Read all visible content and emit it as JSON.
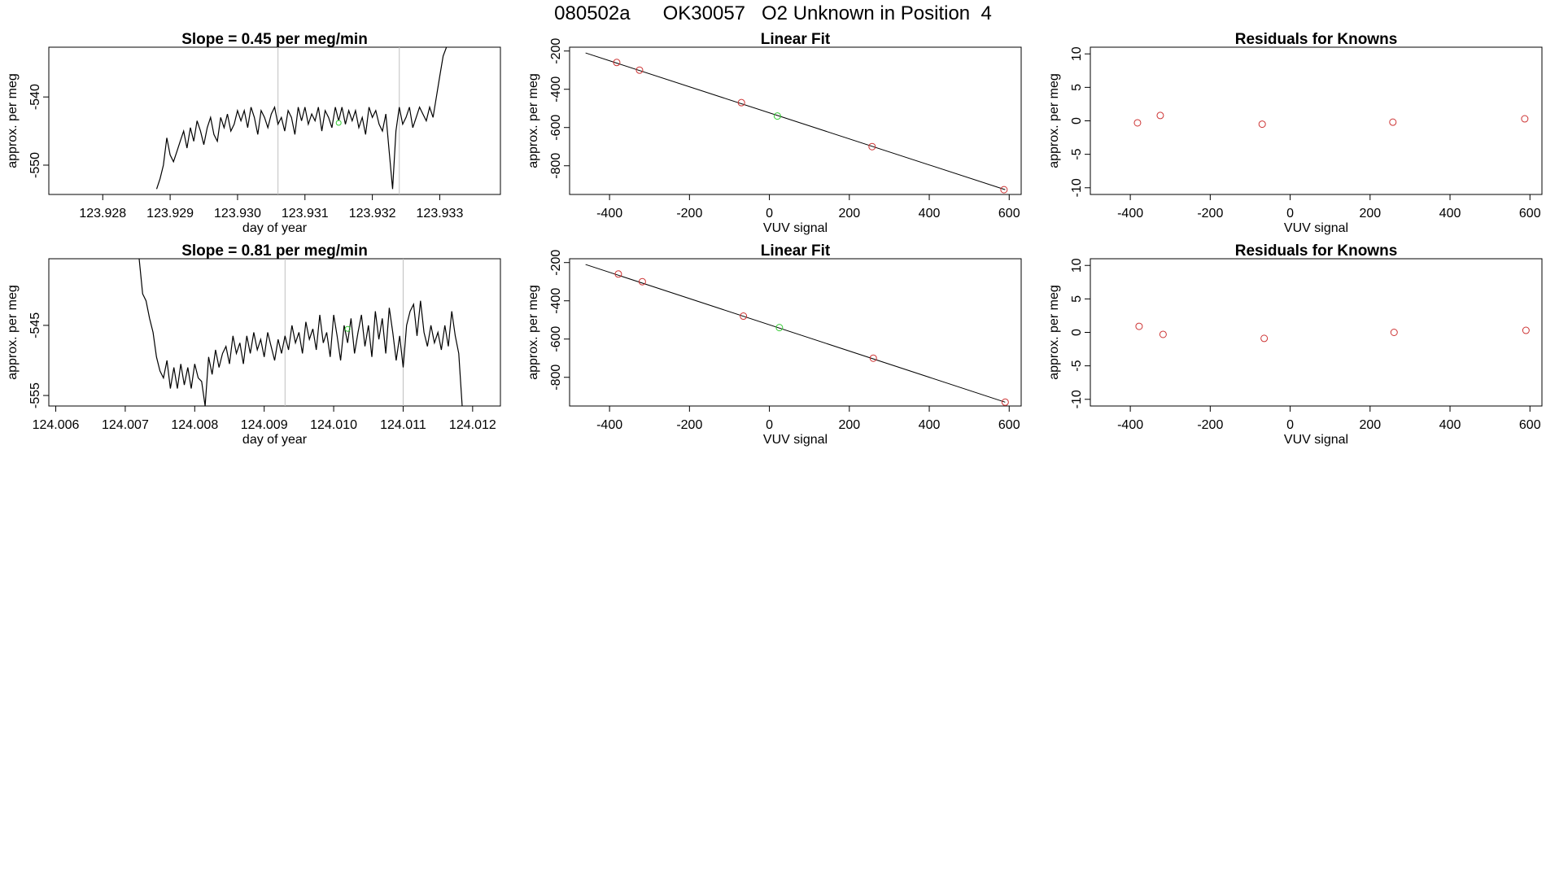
{
  "page": {
    "title": "080502a      OK30057   O2 Unknown in Position  4"
  },
  "colors": {
    "frame": "#000000",
    "trace": "#000000",
    "marker_vline": "#c0c0c0",
    "known_points": "#cd3333",
    "unknown_point": "#33cc33"
  },
  "chart_data": [
    {
      "id": "ts1",
      "type": "line",
      "title": "Slope =  0.45  per meg/min",
      "xlabel": "day of year",
      "ylabel": "approx. per meg",
      "xlim": [
        123.9272,
        123.9339
      ],
      "ylim": [
        -554.3,
        -532.7
      ],
      "xticks": [
        123.928,
        123.929,
        123.93,
        123.931,
        123.932,
        123.933
      ],
      "xtick_labels": [
        "123.928",
        "123.929",
        "123.930",
        "123.931",
        "123.932",
        "123.933"
      ],
      "yticks": [
        -550,
        -540
      ],
      "ytick_labels": [
        "-550",
        "-540"
      ],
      "vlines": [
        123.9306,
        123.9324
      ],
      "unknown_point": {
        "x": 123.9315,
        "y": -543.8
      },
      "series": [
        {
          "x": [
            123.9288,
            123.92885,
            123.9289,
            123.92895,
            123.929,
            123.92905,
            123.9291,
            123.92915,
            123.9292,
            123.92925,
            123.9293,
            123.92935,
            123.9294,
            123.92945,
            123.9295,
            123.92955,
            123.9296,
            123.92965,
            123.9297,
            123.92975,
            123.9298,
            123.92985,
            123.9299,
            123.92995,
            123.93,
            123.93005,
            123.9301,
            123.93015,
            123.9302,
            123.93025,
            123.9303,
            123.93035,
            123.9304,
            123.93045,
            123.9305,
            123.93055,
            123.9306,
            123.93065,
            123.9307,
            123.93075,
            123.9308,
            123.93085,
            123.9309,
            123.93095,
            123.931,
            123.93105,
            123.9311,
            123.93115,
            123.9312,
            123.93125,
            123.9313,
            123.93135,
            123.9314,
            123.93145,
            123.9315,
            123.93155,
            123.9316,
            123.93165,
            123.9317,
            123.93175,
            123.9318,
            123.93185,
            123.9319,
            123.93195,
            123.932,
            123.93205,
            123.9321,
            123.93215,
            123.9322,
            123.93225,
            123.9323,
            123.93235,
            123.9324,
            123.93245,
            123.9325,
            123.93255,
            123.9326,
            123.93265,
            123.9327,
            123.93275,
            123.9328,
            123.93285,
            123.9329,
            123.93295,
            123.933,
            123.93305,
            123.9331
          ],
          "y": [
            -553.5,
            -552.0,
            -550.0,
            -546.0,
            -548.5,
            -549.5,
            -548.0,
            -546.5,
            -545.0,
            -547.5,
            -544.5,
            -546.5,
            -543.5,
            -545.0,
            -547.0,
            -544.5,
            -543.0,
            -545.5,
            -546.5,
            -543.0,
            -544.5,
            -542.5,
            -545.0,
            -544.0,
            -542.0,
            -543.5,
            -542.0,
            -544.5,
            -541.5,
            -543.0,
            -545.5,
            -542.0,
            -543.0,
            -544.5,
            -542.5,
            -541.5,
            -544.0,
            -543.0,
            -545.0,
            -542.0,
            -543.0,
            -545.5,
            -541.5,
            -543.5,
            -541.5,
            -544.0,
            -542.5,
            -543.5,
            -541.5,
            -545.0,
            -542.0,
            -543.0,
            -544.5,
            -541.5,
            -543.5,
            -541.5,
            -544.0,
            -542.0,
            -543.5,
            -542.0,
            -544.5,
            -543.0,
            -545.5,
            -541.5,
            -543.0,
            -542.0,
            -544.0,
            -545.0,
            -542.5,
            -548.0,
            -553.5,
            -545.0,
            -541.5,
            -544.0,
            -543.0,
            -541.5,
            -544.5,
            -543.0,
            -541.5,
            -542.5,
            -543.5,
            -541.5,
            -543.0,
            -540.0,
            -537.0,
            -534.0,
            -532.7
          ]
        }
      ]
    },
    {
      "id": "fit1",
      "type": "scatter",
      "title": "Linear Fit",
      "xlabel": "VUV signal",
      "ylabel": "approx. per meg",
      "xlim": [
        -500,
        630
      ],
      "ylim": [
        -950,
        -180
      ],
      "xticks": [
        -400,
        -200,
        0,
        200,
        400,
        600
      ],
      "xtick_labels": [
        "-400",
        "-200",
        "0",
        "200",
        "400",
        "600"
      ],
      "yticks": [
        -800,
        -600,
        -400,
        -200
      ],
      "ytick_labels": [
        "-800",
        "-600",
        "-400",
        "-200"
      ],
      "fit_line": {
        "x": [
          -460,
          590
        ],
        "y": [
          -210,
          -925
        ]
      },
      "series": [
        {
          "role": "known",
          "x": [
            -382,
            -325,
            -70,
            257,
            587
          ],
          "y": [
            -260,
            -300,
            -470,
            -700,
            -925
          ]
        },
        {
          "role": "unknown",
          "x": [
            20
          ],
          "y": [
            -540
          ]
        }
      ]
    },
    {
      "id": "res1",
      "type": "scatter",
      "title": "Residuals for Knowns",
      "xlabel": "VUV signal",
      "ylabel": "approx. per meg",
      "xlim": [
        -500,
        630
      ],
      "ylim": [
        -11,
        11
      ],
      "xticks": [
        -400,
        -200,
        0,
        200,
        400,
        600
      ],
      "xtick_labels": [
        "-400",
        "-200",
        "0",
        "200",
        "400",
        "600"
      ],
      "yticks": [
        -10,
        -5,
        0,
        5,
        10
      ],
      "ytick_labels": [
        "-10",
        "-5",
        "0",
        "5",
        "10"
      ],
      "series": [
        {
          "role": "known",
          "x": [
            -382,
            -325,
            -70,
            257,
            587
          ],
          "y": [
            -0.3,
            0.8,
            -0.5,
            -0.2,
            0.3
          ]
        }
      ]
    },
    {
      "id": "ts2",
      "type": "line",
      "title": "Slope =  0.81  per meg/min",
      "xlabel": "day of year",
      "ylabel": "approx. per meg",
      "xlim": [
        124.0059,
        124.0124
      ],
      "ylim": [
        -556.5,
        -535.5
      ],
      "xticks": [
        124.006,
        124.007,
        124.008,
        124.009,
        124.01,
        124.011,
        124.012
      ],
      "xtick_labels": [
        "124.006",
        "124.007",
        "124.008",
        "124.009",
        "124.010",
        "124.011",
        "124.012"
      ],
      "yticks": [
        -555,
        -545
      ],
      "ytick_labels": [
        "-555",
        "-545"
      ],
      "vlines": [
        124.0093,
        124.011
      ],
      "unknown_point": {
        "x": 124.0102,
        "y": -545.5
      },
      "series": [
        {
          "x": [
            124.0072,
            124.00725,
            124.0073,
            124.00735,
            124.0074,
            124.00745,
            124.0075,
            124.00755,
            124.0076,
            124.00765,
            124.0077,
            124.00775,
            124.0078,
            124.00785,
            124.0079,
            124.00795,
            124.008,
            124.00805,
            124.0081,
            124.00815,
            124.0082,
            124.00825,
            124.0083,
            124.00835,
            124.0084,
            124.00845,
            124.0085,
            124.00855,
            124.0086,
            124.00865,
            124.0087,
            124.00875,
            124.0088,
            124.00885,
            124.0089,
            124.00895,
            124.009,
            124.00905,
            124.0091,
            124.00915,
            124.0092,
            124.00925,
            124.0093,
            124.00935,
            124.0094,
            124.00945,
            124.0095,
            124.00955,
            124.0096,
            124.00965,
            124.0097,
            124.00975,
            124.0098,
            124.00985,
            124.0099,
            124.00995,
            124.01,
            124.01005,
            124.0101,
            124.01015,
            124.0102,
            124.01025,
            124.0103,
            124.01035,
            124.0104,
            124.01045,
            124.0105,
            124.01055,
            124.0106,
            124.01065,
            124.0107,
            124.01075,
            124.0108,
            124.01085,
            124.0109,
            124.01095,
            124.011,
            124.01105,
            124.0111,
            124.01115,
            124.0112,
            124.01125,
            124.0113,
            124.01135,
            124.0114,
            124.01145,
            124.0115,
            124.01155,
            124.0116,
            124.01165,
            124.0117,
            124.01175,
            124.0118,
            124.01185
          ],
          "y": [
            -535.5,
            -540.5,
            -541.5,
            -544.0,
            -546.0,
            -549.5,
            -551.5,
            -552.5,
            -550.0,
            -554.0,
            -551.0,
            -554.0,
            -550.5,
            -553.5,
            -551.0,
            -554.0,
            -550.5,
            -552.5,
            -553.0,
            -556.5,
            -549.5,
            -552.0,
            -548.5,
            -551.0,
            -549.0,
            -548.0,
            -550.5,
            -546.5,
            -549.0,
            -547.5,
            -550.5,
            -546.5,
            -549.0,
            -546.0,
            -548.5,
            -547.0,
            -549.5,
            -546.0,
            -548.0,
            -550.0,
            -547.0,
            -549.0,
            -546.5,
            -548.5,
            -545.0,
            -547.5,
            -546.0,
            -549.0,
            -544.5,
            -547.0,
            -545.5,
            -548.5,
            -543.5,
            -547.5,
            -546.0,
            -549.5,
            -543.5,
            -546.5,
            -550.0,
            -545.0,
            -547.5,
            -544.0,
            -549.0,
            -546.0,
            -543.5,
            -548.0,
            -545.0,
            -549.5,
            -543.0,
            -547.0,
            -544.0,
            -549.0,
            -542.5,
            -546.0,
            -550.0,
            -546.5,
            -551.0,
            -545.0,
            -543.0,
            -542.0,
            -546.5,
            -541.5,
            -546.0,
            -548.0,
            -545.0,
            -547.5,
            -546.0,
            -548.5,
            -545.0,
            -548.0,
            -543.0,
            -546.5,
            -549.0,
            -556.5
          ]
        }
      ]
    },
    {
      "id": "fit2",
      "type": "scatter",
      "title": "Linear Fit",
      "xlabel": "VUV signal",
      "ylabel": "approx. per meg",
      "xlim": [
        -500,
        630
      ],
      "ylim": [
        -950,
        -180
      ],
      "xticks": [
        -400,
        -200,
        0,
        200,
        400,
        600
      ],
      "xtick_labels": [
        "-400",
        "-200",
        "0",
        "200",
        "400",
        "600"
      ],
      "yticks": [
        -800,
        -600,
        -400,
        -200
      ],
      "ytick_labels": [
        "-800",
        "-600",
        "-400",
        "-200"
      ],
      "fit_line": {
        "x": [
          -460,
          590
        ],
        "y": [
          -210,
          -930
        ]
      },
      "series": [
        {
          "role": "known",
          "x": [
            -378,
            -318,
            -65,
            260,
            590
          ],
          "y": [
            -260,
            -300,
            -480,
            -700,
            -930
          ]
        },
        {
          "role": "unknown",
          "x": [
            25
          ],
          "y": [
            -540
          ]
        }
      ]
    },
    {
      "id": "res2",
      "type": "scatter",
      "title": "Residuals for Knowns",
      "xlabel": "VUV signal",
      "ylabel": "approx. per meg",
      "xlim": [
        -500,
        630
      ],
      "ylim": [
        -11,
        11
      ],
      "xticks": [
        -400,
        -200,
        0,
        200,
        400,
        600
      ],
      "xtick_labels": [
        "-400",
        "-200",
        "0",
        "200",
        "400",
        "600"
      ],
      "yticks": [
        -10,
        -5,
        0,
        5,
        10
      ],
      "ytick_labels": [
        "-10",
        "-5",
        "0",
        "5",
        "10"
      ],
      "series": [
        {
          "role": "known",
          "x": [
            -378,
            -318,
            -65,
            260,
            590
          ],
          "y": [
            0.9,
            -0.3,
            -0.9,
            0.0,
            0.3
          ]
        }
      ]
    }
  ]
}
